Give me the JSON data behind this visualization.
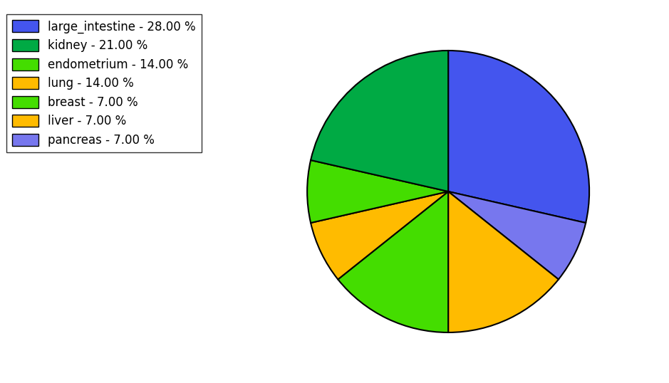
{
  "labels": [
    "large_intestine",
    "pancreas",
    "lung",
    "endometrium",
    "liver",
    "breast",
    "kidney"
  ],
  "values": [
    28.0,
    7.0,
    14.0,
    14.0,
    7.0,
    7.0,
    21.0
  ],
  "colors": [
    "#4455ee",
    "#7777ee",
    "#ffbb00",
    "#44dd00",
    "#ffbb00",
    "#44dd00",
    "#00aa44"
  ],
  "legend_labels": [
    "large_intestine - 28.00 %",
    "kidney - 21.00 %",
    "endometrium - 14.00 %",
    "lung - 14.00 %",
    "breast - 7.00 %",
    "liver - 7.00 %",
    "pancreas - 7.00 %"
  ],
  "legend_colors": [
    "#4455ee",
    "#00aa44",
    "#44dd00",
    "#ffbb00",
    "#44dd00",
    "#ffbb00",
    "#7777ee"
  ],
  "startangle": 90,
  "figsize": [
    9.39,
    5.38
  ],
  "dpi": 100
}
